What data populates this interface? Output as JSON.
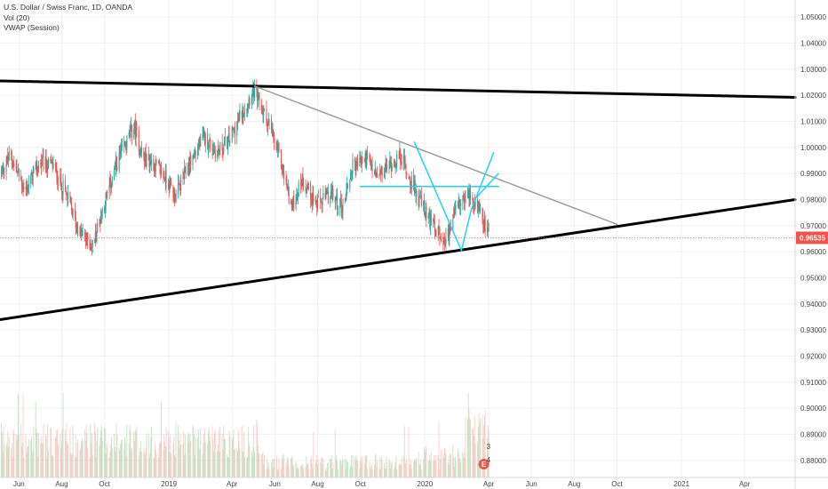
{
  "legend": {
    "title": "U.S. Dollar / Swiss Franc, 1D, OANDA",
    "indicators": [
      "Vol (20)",
      "VWAP (Session)"
    ]
  },
  "colors": {
    "up": "#26a69a",
    "down": "#ef5350",
    "volume_up": "#a5d6a7",
    "volume_down": "#f5b7b1",
    "trendline": "#000000",
    "resistance": "#9e9e9e",
    "pattern": "#22d3ee",
    "price_line": "#ef5350",
    "grid": "#eef1f4"
  },
  "events": {
    "badge_label": "E",
    "flag_top": "3",
    "flag_bottom": "4"
  },
  "chart_data": {
    "type": "candlestick",
    "symbol": "U.S. Dollar / Swiss Franc",
    "interval": "1D",
    "exchange": "OANDA",
    "last_price": 0.96535,
    "last_price_label": "0.96535",
    "x_ticks": [
      "Jun",
      "Aug",
      "Oct",
      "2019",
      "Apr",
      "Jun",
      "Aug",
      "Oct",
      "2020",
      "Apr",
      "Jun",
      "Aug",
      "Oct",
      "2021",
      "Apr"
    ],
    "x_tick_dates": [
      "2018-06-01",
      "2018-08-01",
      "2018-10-01",
      "2019-01-01",
      "2019-04-01",
      "2019-06-01",
      "2019-08-01",
      "2019-10-01",
      "2020-01-01",
      "2020-04-01",
      "2020-06-01",
      "2020-08-01",
      "2020-10-01",
      "2021-01-01",
      "2021-04-01"
    ],
    "y_ticks": [
      "1.05000",
      "1.04000",
      "1.03000",
      "1.02000",
      "1.01000",
      "1.00000",
      "0.99000",
      "0.98000",
      "0.97000",
      "0.96000",
      "0.95000",
      "0.94000",
      "0.93000",
      "0.92000",
      "0.91000",
      "0.90000",
      "0.89000",
      "0.88000"
    ],
    "ylim": [
      0.8735,
      1.0565
    ],
    "xlim": [
      "2018-05-05",
      "2021-06-12"
    ],
    "close_anchors": [
      [
        "2018-05-05",
        0.99
      ],
      [
        "2018-05-20",
        0.997
      ],
      [
        "2018-06-10",
        0.983
      ],
      [
        "2018-06-30",
        0.994
      ],
      [
        "2018-07-20",
        0.993
      ],
      [
        "2018-08-10",
        0.98
      ],
      [
        "2018-08-25",
        0.968
      ],
      [
        "2018-09-14",
        0.962
      ],
      [
        "2018-09-28",
        0.976
      ],
      [
        "2018-10-20",
        0.995
      ],
      [
        "2018-11-12",
        1.008
      ],
      [
        "2018-11-25",
        0.996
      ],
      [
        "2018-12-10",
        0.994
      ],
      [
        "2018-12-31",
        0.987
      ],
      [
        "2019-01-10",
        0.981
      ],
      [
        "2019-02-01",
        0.995
      ],
      [
        "2019-02-20",
        1.004
      ],
      [
        "2019-03-10",
        0.998
      ],
      [
        "2019-03-28",
        1.003
      ],
      [
        "2019-04-20",
        1.016
      ],
      [
        "2019-05-01",
        1.022
      ],
      [
        "2019-05-22",
        1.01
      ],
      [
        "2019-06-10",
        0.994
      ],
      [
        "2019-06-25",
        0.977
      ],
      [
        "2019-07-10",
        0.988
      ],
      [
        "2019-07-31",
        0.978
      ],
      [
        "2019-08-20",
        0.982
      ],
      [
        "2019-09-05",
        0.977
      ],
      [
        "2019-09-20",
        0.993
      ],
      [
        "2019-10-10",
        0.996
      ],
      [
        "2019-10-25",
        0.988
      ],
      [
        "2019-11-10",
        0.993
      ],
      [
        "2019-11-28",
        0.997
      ],
      [
        "2019-12-10",
        0.988
      ],
      [
        "2019-12-31",
        0.976
      ],
      [
        "2020-01-15",
        0.969
      ],
      [
        "2020-02-01",
        0.965
      ],
      [
        "2020-02-18",
        0.978
      ],
      [
        "2020-02-28",
        0.982
      ],
      [
        "2020-03-09",
        0.98
      ],
      [
        "2020-03-20",
        0.975
      ],
      [
        "2020-03-27",
        0.969
      ],
      [
        "2020-04-01",
        0.96535
      ]
    ],
    "drawings": {
      "upper_trendline": {
        "color": "black",
        "points": [
          [
            "2018-05-05",
            1.0255
          ],
          [
            "2021-06-12",
            1.0192
          ]
        ]
      },
      "lower_trendline": {
        "color": "black",
        "points": [
          [
            "2018-05-05",
            0.934
          ],
          [
            "2021-06-12",
            0.98
          ]
        ]
      },
      "descending_resistance": {
        "color": "gray",
        "points": [
          [
            "2019-05-03",
            1.0235
          ],
          [
            "2020-10-01",
            0.9705
          ]
        ]
      },
      "neckline": {
        "color": "cyan",
        "points": [
          [
            "2019-10-01",
            0.985
          ],
          [
            "2020-04-15",
            0.985
          ]
        ]
      },
      "pattern_path": {
        "color": "cyan",
        "points": [
          [
            "2019-12-17",
            1.002
          ],
          [
            "2020-02-22",
            0.9605
          ],
          [
            "2020-03-07",
            0.976
          ],
          [
            "2020-04-08",
            0.998
          ]
        ]
      },
      "pattern_upper_leg": {
        "color": "cyan",
        "points": [
          [
            "2020-03-15",
            0.981
          ],
          [
            "2020-04-15",
            0.99
          ]
        ]
      }
    },
    "volume": {
      "label": "Vol (20)"
    }
  }
}
